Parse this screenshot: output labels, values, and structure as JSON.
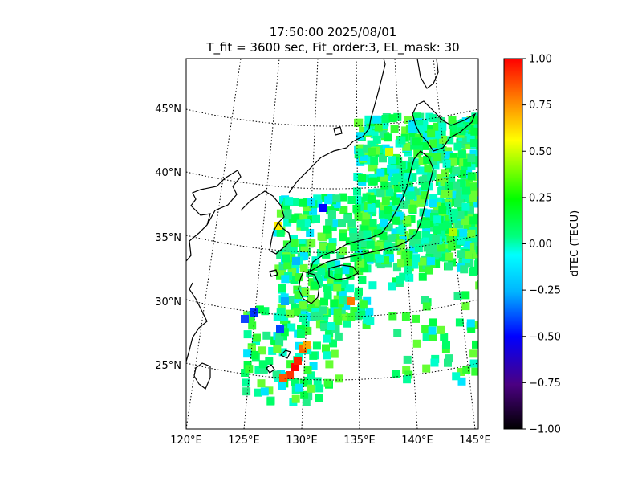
{
  "title": {
    "line1": "17:50:00 2025/08/01",
    "line2": "T_fit = 3600 sec, Fit_order:3, EL_mask: 30"
  },
  "map": {
    "lon_ticks": [
      "120°E",
      "125°E",
      "130°E",
      "135°E",
      "140°E",
      "145°E"
    ],
    "lat_ticks": [
      "45°N",
      "40°N",
      "35°N",
      "30°N",
      "25°N"
    ],
    "lon_range": [
      120,
      145
    ],
    "lat_range": [
      20,
      48
    ],
    "graticule": "dotted",
    "projection": "conic"
  },
  "colorbar": {
    "label": "dTEC (TECU)",
    "ticks": [
      "1.00",
      "0.75",
      "0.50",
      "0.25",
      "0.00",
      "−0.25",
      "−0.50",
      "−0.75",
      "−1.00"
    ],
    "range": [
      -1.0,
      1.0
    ],
    "colormap": [
      "#000000",
      "#4b0082",
      "#0000ff",
      "#00b4ff",
      "#00ffff",
      "#00ff7f",
      "#00ff00",
      "#7fff00",
      "#ffff00",
      "#ff8c00",
      "#ff0000"
    ]
  }
}
